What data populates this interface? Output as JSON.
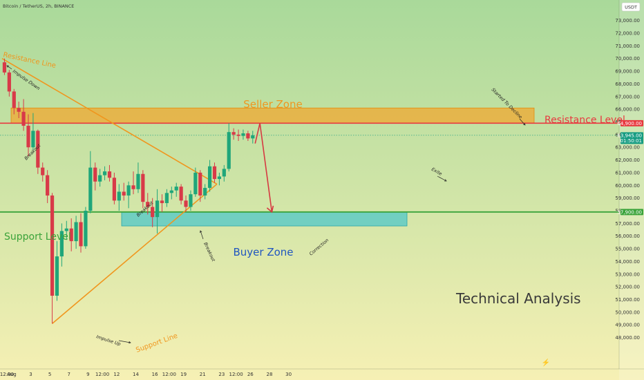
{
  "header": {
    "title": "Bitcoin / TetherUS, 2h, BINANCE",
    "currency_button": "USDT"
  },
  "footer": {
    "logo_symbol": "⚡"
  },
  "colors": {
    "bg_top": "#a9d99a",
    "bg_bottom": "#f6f0b4",
    "up": "#1fa67a",
    "down": "#d83a48",
    "resistance": "#e8383f",
    "support": "#3aa33a",
    "seller_zone": "#f0a830",
    "buyer_zone": "#4fc7c9",
    "trend": "#f0961e",
    "current": "#169c82",
    "arrow": "#d63841"
  },
  "chart_data": {
    "type": "candlestick",
    "title": "Bitcoin / TetherUS, 2h, BINANCE",
    "y_ticks": [
      "73,000.00",
      "72,000.00",
      "71,000.00",
      "70,000.00",
      "69,000.00",
      "68,000.00",
      "67,000.00",
      "66,000.00",
      "65,000.00",
      "64,000.00",
      "63,000.00",
      "62,000.00",
      "61,000.00",
      "60,000.00",
      "59,000.00",
      "58,000.00",
      "57,000.00",
      "56,000.00",
      "55,000.00",
      "54,000.00",
      "53,000.00",
      "52,000.00",
      "51,000.00",
      "50,000.00",
      "49,000.00",
      "48,000.00"
    ],
    "x_ticks": [
      "12:00",
      "Aug",
      "3",
      "5",
      "7",
      "9",
      "12:00",
      "12",
      "14",
      "16",
      "12:00",
      "19",
      "21",
      "23",
      "12:00",
      "26",
      "28",
      "30"
    ],
    "ylim": [
      47500,
      74000
    ],
    "resistance_level": {
      "label": "Resistance Level",
      "price": 64900,
      "price_label": "64,900.00"
    },
    "support_level": {
      "label": "Support Level",
      "price": 57900,
      "price_label": "57,900.00"
    },
    "current_price": {
      "price": 63945,
      "price_label": "63,945.00",
      "countdown": "01:50:01"
    },
    "seller_zone": {
      "label": "Seller Zone",
      "low": 64900,
      "high": 66100
    },
    "buyer_zone": {
      "label": "Buyer Zone",
      "low": 56800,
      "high": 57900
    },
    "resistance_line": {
      "label": "Resistance Line",
      "from": [
        "Jul 31 00:00",
        70000
      ],
      "to": [
        "Aug 22 12:00",
        60100
      ]
    },
    "support_line": {
      "label": "Support Line",
      "from": [
        "Aug 5 06:00",
        49100
      ],
      "to": [
        "Aug 22 12:00",
        60100
      ]
    },
    "candles": [
      {
        "t": "Jul 31 00:00",
        "o": 69700,
        "h": 70000,
        "l": 68700,
        "c": 68900
      },
      {
        "t": "Jul 31 12:00",
        "o": 68900,
        "h": 69100,
        "l": 67000,
        "c": 67400
      },
      {
        "t": "Aug 1 00:00",
        "o": 67400,
        "h": 67600,
        "l": 65600,
        "c": 66100
      },
      {
        "t": "Aug 1 12:00",
        "o": 66100,
        "h": 66600,
        "l": 65300,
        "c": 65800
      },
      {
        "t": "Aug 2 00:00",
        "o": 65800,
        "h": 66800,
        "l": 64300,
        "c": 64700
      },
      {
        "t": "Aug 2 12:00",
        "o": 64700,
        "h": 65600,
        "l": 62300,
        "c": 63000
      },
      {
        "t": "Aug 3 00:00",
        "o": 63000,
        "h": 65700,
        "l": 62800,
        "c": 64300
      },
      {
        "t": "Aug 3 12:00",
        "o": 64300,
        "h": 64400,
        "l": 60900,
        "c": 61400
      },
      {
        "t": "Aug 4 00:00",
        "o": 61400,
        "h": 61800,
        "l": 60300,
        "c": 60800
      },
      {
        "t": "Aug 4 12:00",
        "o": 60800,
        "h": 61200,
        "l": 58600,
        "c": 59200
      },
      {
        "t": "Aug 5 00:00",
        "o": 59200,
        "h": 59400,
        "l": 49100,
        "c": 51300
      },
      {
        "t": "Aug 5 12:00",
        "o": 51300,
        "h": 55600,
        "l": 50900,
        "c": 54400
      },
      {
        "t": "Aug 6 00:00",
        "o": 54400,
        "h": 57000,
        "l": 53600,
        "c": 56400
      },
      {
        "t": "Aug 6 12:00",
        "o": 56400,
        "h": 57200,
        "l": 55700,
        "c": 56600
      },
      {
        "t": "Aug 7 00:00",
        "o": 56600,
        "h": 57400,
        "l": 54800,
        "c": 55600
      },
      {
        "t": "Aug 7 12:00",
        "o": 55600,
        "h": 57600,
        "l": 55000,
        "c": 57100
      },
      {
        "t": "Aug 8 00:00",
        "o": 57100,
        "h": 57800,
        "l": 54700,
        "c": 55200
      },
      {
        "t": "Aug 8 12:00",
        "o": 55200,
        "h": 58300,
        "l": 55000,
        "c": 58000
      },
      {
        "t": "Aug 9 00:00",
        "o": 58000,
        "h": 62700,
        "l": 57800,
        "c": 61400
      },
      {
        "t": "Aug 9 12:00",
        "o": 61400,
        "h": 61800,
        "l": 59600,
        "c": 60300
      },
      {
        "t": "Aug 10 00:00",
        "o": 60300,
        "h": 61300,
        "l": 59900,
        "c": 60800
      },
      {
        "t": "Aug 10 12:00",
        "o": 60800,
        "h": 61500,
        "l": 60400,
        "c": 61100
      },
      {
        "t": "Aug 11 00:00",
        "o": 61100,
        "h": 61600,
        "l": 60300,
        "c": 60600
      },
      {
        "t": "Aug 11 12:00",
        "o": 60600,
        "h": 61000,
        "l": 58500,
        "c": 58800
      },
      {
        "t": "Aug 12 00:00",
        "o": 58800,
        "h": 60100,
        "l": 58000,
        "c": 59500
      },
      {
        "t": "Aug 12 12:00",
        "o": 59500,
        "h": 60200,
        "l": 58800,
        "c": 59200
      },
      {
        "t": "Aug 13 00:00",
        "o": 59200,
        "h": 60300,
        "l": 58200,
        "c": 60000
      },
      {
        "t": "Aug 13 12:00",
        "o": 60000,
        "h": 61100,
        "l": 59300,
        "c": 59700
      },
      {
        "t": "Aug 14 00:00",
        "o": 59700,
        "h": 61800,
        "l": 59400,
        "c": 60900
      },
      {
        "t": "Aug 14 12:00",
        "o": 60900,
        "h": 61200,
        "l": 58200,
        "c": 58700
      },
      {
        "t": "Aug 15 00:00",
        "o": 58700,
        "h": 59400,
        "l": 57700,
        "c": 58300
      },
      {
        "t": "Aug 15 12:00",
        "o": 58300,
        "h": 59000,
        "l": 56700,
        "c": 57500
      },
      {
        "t": "Aug 16 00:00",
        "o": 57500,
        "h": 59700,
        "l": 56200,
        "c": 58800
      },
      {
        "t": "Aug 16 12:00",
        "o": 58800,
        "h": 59300,
        "l": 57900,
        "c": 58600
      },
      {
        "t": "Aug 17 00:00",
        "o": 58600,
        "h": 59700,
        "l": 58300,
        "c": 59400
      },
      {
        "t": "Aug 17 12:00",
        "o": 59400,
        "h": 59900,
        "l": 58900,
        "c": 59600
      },
      {
        "t": "Aug 18 00:00",
        "o": 59600,
        "h": 60200,
        "l": 59100,
        "c": 59900
      },
      {
        "t": "Aug 18 12:00",
        "o": 59900,
        "h": 60100,
        "l": 58500,
        "c": 58800
      },
      {
        "t": "Aug 19 00:00",
        "o": 58800,
        "h": 59200,
        "l": 57900,
        "c": 58300
      },
      {
        "t": "Aug 19 12:00",
        "o": 58300,
        "h": 59600,
        "l": 58000,
        "c": 59300
      },
      {
        "t": "Aug 20 00:00",
        "o": 59300,
        "h": 61400,
        "l": 59100,
        "c": 61000
      },
      {
        "t": "Aug 20 12:00",
        "o": 61000,
        "h": 61200,
        "l": 58700,
        "c": 59200
      },
      {
        "t": "Aug 21 00:00",
        "o": 59200,
        "h": 60100,
        "l": 58900,
        "c": 59800
      },
      {
        "t": "Aug 21 12:00",
        "o": 59800,
        "h": 62000,
        "l": 59500,
        "c": 61500
      },
      {
        "t": "Aug 22 00:00",
        "o": 61500,
        "h": 61800,
        "l": 60200,
        "c": 60500
      },
      {
        "t": "Aug 22 12:00",
        "o": 60500,
        "h": 61000,
        "l": 60000,
        "c": 60700
      },
      {
        "t": "Aug 23 00:00",
        "o": 60700,
        "h": 61600,
        "l": 60300,
        "c": 61300
      },
      {
        "t": "Aug 23 12:00",
        "o": 61300,
        "h": 64900,
        "l": 61100,
        "c": 64200
      },
      {
        "t": "Aug 24 00:00",
        "o": 64200,
        "h": 64500,
        "l": 63600,
        "c": 64000
      },
      {
        "t": "Aug 24 12:00",
        "o": 64000,
        "h": 64400,
        "l": 63500,
        "c": 63900
      },
      {
        "t": "Aug 25 00:00",
        "o": 63900,
        "h": 64400,
        "l": 63600,
        "c": 64100
      },
      {
        "t": "Aug 25 12:00",
        "o": 64100,
        "h": 64300,
        "l": 63500,
        "c": 63700
      },
      {
        "t": "Aug 26 00:00",
        "o": 63700,
        "h": 64300,
        "l": 63300,
        "c": 63945
      }
    ],
    "projection": {
      "from": [
        "Aug 26 12:00",
        63300
      ],
      "peak": [
        "Aug 27 00:00",
        64900
      ],
      "to": [
        "Aug 28 06:00",
        57900
      ]
    },
    "annotations": [
      {
        "text": "Resistance Line"
      },
      {
        "text": "Impulse Down"
      },
      {
        "text": "Breakout"
      },
      {
        "text": "Breakout"
      },
      {
        "text": "Breakout"
      },
      {
        "text": "Impulse Up"
      },
      {
        "text": "Support Line"
      },
      {
        "text": "Correction"
      },
      {
        "text": "Exite"
      },
      {
        "text": "Started To Decline"
      },
      {
        "text": "Seller Zone"
      },
      {
        "text": "Buyer Zone"
      },
      {
        "text": "Support Level"
      },
      {
        "text": "Resistance Level"
      },
      {
        "text": "Technical Analysis"
      }
    ]
  }
}
